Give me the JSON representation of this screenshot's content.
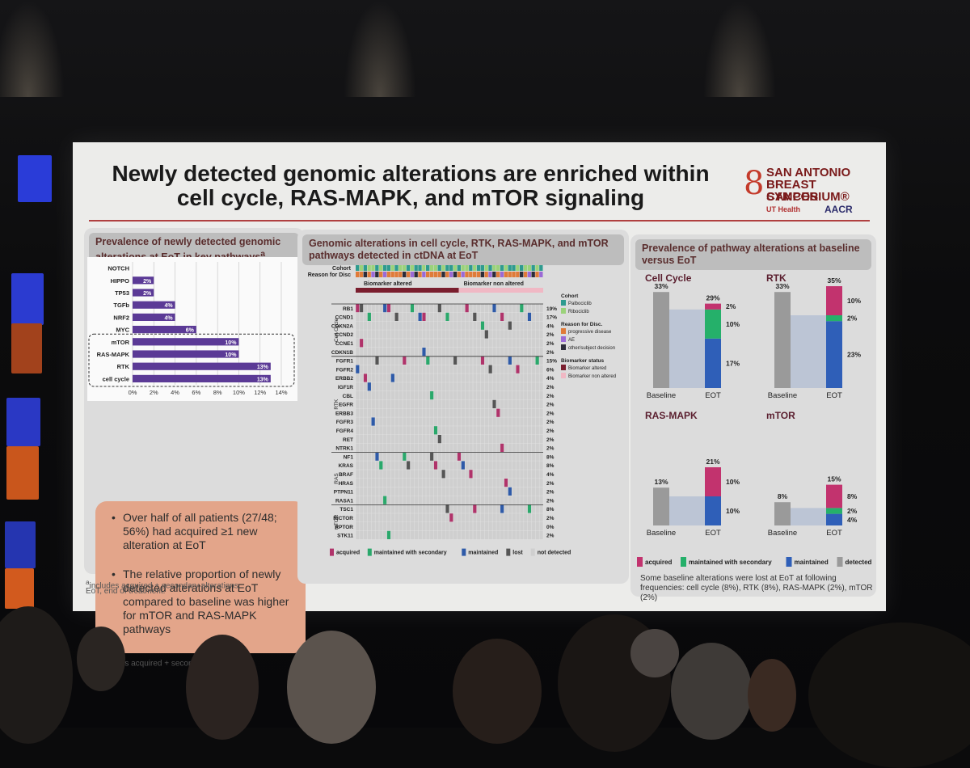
{
  "slide": {
    "title": "Newly detected genomic alterations are enriched within cell cycle, RAS-MAPK, and mTOR signaling",
    "logo": {
      "line1": "SAN ANTONIO",
      "line2": "BREAST CANCER",
      "line3": "SYMPOSIUM®",
      "ut": "UT Health",
      "aacr": "AACR"
    },
    "left_panel": {
      "heading": "Prevalence of newly detected genomic alterations at EoT in key pathways",
      "heading_sup": "a",
      "bullets": [
        "Over half of all patients (27/48; 56%) had acquired ≥1 new alteration at EoT",
        "The relative proportion of newly detected alterations at EoT compared to baseline was higher for mTOR and RAS-MAPK pathways"
      ],
      "footnote1": "includes acquired + secondary alterations",
      "footnote1_sup": "a",
      "footnote2": "EoT, end of treatment."
    },
    "middle_panel": {
      "heading": "Genomic alterations in cell cycle, RTK, RAS-MAPK, and mTOR pathways detected in ctDNA at EoT",
      "cohort_label": "Cohort",
      "reason_label": "Reason for Disc",
      "biomarker_altered": "Biomarker altered",
      "biomarker_non_altered": "Biomarker non altered",
      "groups": [
        "Cell Cycle",
        "RTK",
        "RAS",
        "mTOR"
      ],
      "genes": [
        {
          "g": "RB1",
          "p": "19%"
        },
        {
          "g": "CCND1",
          "p": "17%"
        },
        {
          "g": "CDKN2A",
          "p": "4%"
        },
        {
          "g": "CCND2",
          "p": "2%"
        },
        {
          "g": "CCNE1",
          "p": "2%"
        },
        {
          "g": "CDKN1B",
          "p": "2%"
        },
        {
          "g": "FGFR1",
          "p": "15%"
        },
        {
          "g": "FGFR2",
          "p": "6%"
        },
        {
          "g": "ERBB2",
          "p": "4%"
        },
        {
          "g": "IGF1R",
          "p": "2%"
        },
        {
          "g": "CBL",
          "p": "2%"
        },
        {
          "g": "EGFR",
          "p": "2%"
        },
        {
          "g": "ERBB3",
          "p": "2%"
        },
        {
          "g": "FGFR3",
          "p": "2%"
        },
        {
          "g": "FGFR4",
          "p": "2%"
        },
        {
          "g": "RET",
          "p": "2%"
        },
        {
          "g": "NTRK1",
          "p": "2%"
        },
        {
          "g": "NF1",
          "p": "8%"
        },
        {
          "g": "KRAS",
          "p": "8%"
        },
        {
          "g": "BRAF",
          "p": "4%"
        },
        {
          "g": "HRAS",
          "p": "2%"
        },
        {
          "g": "PTPN11",
          "p": "2%"
        },
        {
          "g": "RASA1",
          "p": "2%"
        },
        {
          "g": "TSC1",
          "p": "8%"
        },
        {
          "g": "RICTOR",
          "p": "2%"
        },
        {
          "g": "RPTOR",
          "p": "0%"
        },
        {
          "g": "STK11",
          "p": "2%"
        }
      ],
      "side_legend": {
        "cohort_title": "Cohort",
        "cohort_items": [
          {
            "label": "Palbociclib",
            "color": "#2e9b8f"
          },
          {
            "label": "Ribociclib",
            "color": "#9bd27a"
          }
        ],
        "reason_title": "Reason for Disc.",
        "reason_items": [
          {
            "label": "progressive disease",
            "color": "#e07b39"
          },
          {
            "label": "AE",
            "color": "#9b6ad6"
          },
          {
            "label": "other/subject decision",
            "color": "#2c2c3a"
          }
        ],
        "bio_title": "Biomarker status",
        "bio_items": [
          {
            "label": "Biomarker altered",
            "color": "#7a1e2e"
          },
          {
            "label": "Biomarker non altered",
            "color": "#f0b8c4"
          }
        ]
      },
      "bottom_legend": [
        {
          "label": "acquired",
          "color": "#b0336a"
        },
        {
          "label": "maintained with secondary",
          "color": "#2aa86b"
        },
        {
          "label": "maintained",
          "color": "#2e5aa8"
        },
        {
          "label": "lost",
          "color": "#555555"
        },
        {
          "label": "not detected",
          "color": "#cfcfcf"
        }
      ]
    },
    "right_panel": {
      "heading": "Prevalence of pathway alterations at baseline versus EoT",
      "legend": [
        {
          "label": "acquired",
          "color": "#c2336e"
        },
        {
          "label": "maintained with secondary",
          "color": "#25b06a"
        },
        {
          "label": "maintained",
          "color": "#2f5fb8"
        },
        {
          "label": "detected",
          "color": "#9a9a9a"
        }
      ],
      "note": "Some baseline alterations were lost at EoT at following frequencies: cell cycle (8%), RTK (8%), RAS-MAPK (2%), mTOR (2%)"
    }
  },
  "chart_data": [
    {
      "type": "bar",
      "orientation": "horizontal",
      "categories": [
        "NOTCH",
        "HIPPO",
        "TP53",
        "TGFb",
        "NRF2",
        "MYC",
        "mTOR",
        "RAS-MAPK",
        "RTK",
        "cell cycle"
      ],
      "values": [
        0,
        2,
        2,
        4,
        4,
        6,
        10,
        10,
        13,
        13
      ],
      "value_labels": [
        "",
        "2%",
        "2%",
        "4%",
        "4%",
        "6%",
        "10%",
        "10%",
        "13%",
        "13%"
      ],
      "ticks": [
        "0%",
        "2%",
        "4%",
        "6%",
        "8%",
        "10%",
        "12%",
        "14%"
      ],
      "xlim": [
        0,
        14
      ],
      "color": "#5b3a96"
    },
    {
      "type": "bar",
      "stacked": true,
      "panels": [
        {
          "title": "Cell Cycle",
          "baseline": 33,
          "baseline_label": "33%",
          "eot_total": 29,
          "eot_total_label": "29%",
          "acquired": 2,
          "acquired_label": "2%",
          "secondary": 10,
          "secondary_label": "10%",
          "maintained": 17,
          "maintained_label": "17%"
        },
        {
          "title": "RTK",
          "baseline": 33,
          "baseline_label": "33%",
          "eot_total": 35,
          "eot_total_label": "35%",
          "acquired": 10,
          "acquired_label": "10%",
          "secondary": 2,
          "secondary_label": "2%",
          "maintained": 23,
          "maintained_label": "23%"
        },
        {
          "title": "RAS-MAPK",
          "baseline": 13,
          "baseline_label": "13%",
          "eot_total": 21,
          "eot_total_label": "21%",
          "acquired": 10,
          "acquired_label": "10%",
          "secondary": 0,
          "secondary_label": "",
          "maintained": 10,
          "maintained_label": "10%"
        },
        {
          "title": "mTOR",
          "baseline": 8,
          "baseline_label": "8%",
          "eot_total": 15,
          "eot_total_label": "15%",
          "acquired": 8,
          "acquired_label": "8%",
          "secondary": 2,
          "secondary_label": "2%",
          "maintained": 4,
          "maintained_label": "4%"
        }
      ],
      "categories": [
        "Baseline",
        "EOT"
      ]
    }
  ]
}
